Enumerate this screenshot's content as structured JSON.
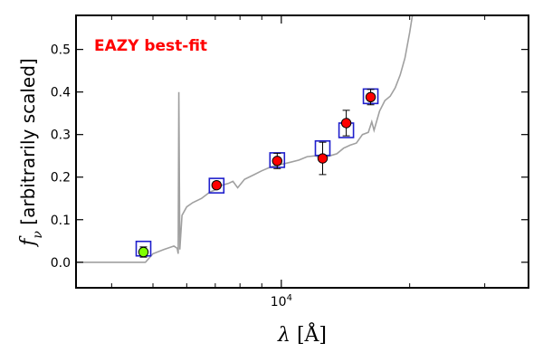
{
  "chart_data": {
    "type": "scatter",
    "title": "",
    "annotation": {
      "text": "EAZY best-fit",
      "color": "#ff0000",
      "placement": "top-left"
    },
    "xlabel": "λ [Å]",
    "ylabel": "f_ν [arbitrarily scaled]",
    "ylabel_parts": {
      "symbol": "f",
      "subscript": "ν",
      "text": " [arbitrarily scaled]"
    },
    "xlabel_parts": {
      "symbol": "λ",
      "text": " [Å]"
    },
    "x_scale": "log",
    "xlim": [
      3300,
      38000
    ],
    "ylim": [
      -0.06,
      0.58
    ],
    "x_ticks": [
      {
        "value": 10000,
        "base": "10",
        "exp": "4"
      }
    ],
    "x_minor_ticks": [
      4000,
      5000,
      6000,
      7000,
      8000,
      9000,
      20000,
      30000
    ],
    "y_ticks": [
      0.0,
      0.1,
      0.2,
      0.3,
      0.4,
      0.5
    ],
    "y_tick_labels": [
      "0.0",
      "0.1",
      "0.2",
      "0.3",
      "0.4",
      "0.5"
    ],
    "colors": {
      "sed_line": "#a0a0a0",
      "model_box": "#1f1fcc",
      "obs_point": "#ff0000",
      "highlight_point": "#7fff00",
      "error_bar": "#000000",
      "annotation": "#ff0000"
    },
    "series": [
      {
        "name": "best-fit SED",
        "kind": "line",
        "x": [
          3300,
          3500,
          4000,
          4400,
          4800,
          5000,
          5300,
          5600,
          5700,
          5730,
          5750,
          5780,
          5850,
          6000,
          6200,
          6500,
          6800,
          7000,
          7200,
          7500,
          7700,
          7900,
          8200,
          8600,
          9000,
          9500,
          10000,
          10500,
          11000,
          11500,
          12000,
          12500,
          13000,
          13500,
          14000,
          14500,
          15000,
          15500,
          16000,
          16300,
          16500,
          17000,
          17500,
          18000,
          18500,
          19000,
          19500,
          20000,
          20300
        ],
        "y": [
          0.0,
          0.0,
          0.0,
          0.0,
          0.0,
          0.02,
          0.03,
          0.038,
          0.033,
          0.02,
          0.4,
          0.03,
          0.11,
          0.13,
          0.14,
          0.15,
          0.165,
          0.17,
          0.18,
          0.185,
          0.19,
          0.175,
          0.195,
          0.205,
          0.215,
          0.225,
          0.23,
          0.235,
          0.24,
          0.248,
          0.25,
          0.245,
          0.25,
          0.255,
          0.268,
          0.275,
          0.28,
          0.3,
          0.305,
          0.33,
          0.31,
          0.355,
          0.38,
          0.39,
          0.41,
          0.44,
          0.48,
          0.54,
          0.58
        ]
      },
      {
        "name": "model fluxes",
        "kind": "square-marker",
        "x": [
          4750,
          7050,
          9780,
          12500,
          14200,
          16200
        ],
        "y": [
          0.032,
          0.18,
          0.24,
          0.268,
          0.31,
          0.39
        ]
      },
      {
        "name": "observed fluxes",
        "kind": "errorbar-circle",
        "points": [
          {
            "x": 4750,
            "y": 0.024,
            "err": 0.012,
            "highlight": true
          },
          {
            "x": 7050,
            "y": 0.181,
            "err": 0.008,
            "highlight": false
          },
          {
            "x": 9780,
            "y": 0.238,
            "err": 0.018,
            "highlight": false
          },
          {
            "x": 12500,
            "y": 0.244,
            "err": 0.038,
            "highlight": false
          },
          {
            "x": 14200,
            "y": 0.327,
            "err": 0.03,
            "highlight": false
          },
          {
            "x": 16200,
            "y": 0.388,
            "err": 0.018,
            "highlight": false
          }
        ]
      }
    ]
  }
}
